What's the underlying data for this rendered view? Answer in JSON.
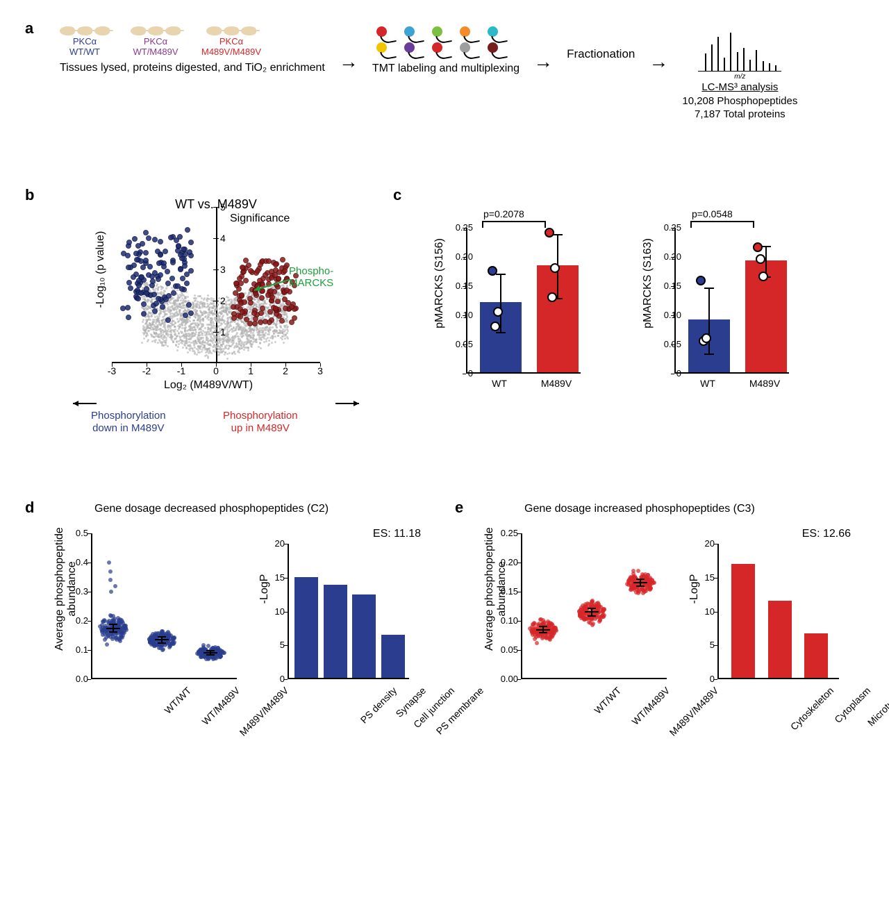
{
  "colors": {
    "blue": "#2a3d8f",
    "darkblue": "#1f2e70",
    "red": "#d62728",
    "darkred": "#8b1a1a",
    "purple": "#8b3a8b",
    "green": "#1fa038",
    "grey": "#b0b0b0",
    "black": "#000000",
    "mouse": "#e8d5b0"
  },
  "panel_a": {
    "genotypes": [
      {
        "top": "PKCα",
        "bot": "WT/WT",
        "cls": "gen-blue"
      },
      {
        "top": "PKCα",
        "bot": "WT/M489V",
        "cls": "gen-purple"
      },
      {
        "top": "PKCα",
        "bot": "M489V/M489V",
        "cls": "gen-red"
      }
    ],
    "step1": "Tissues lysed, proteins digested,\nand TiO₂ enrichment",
    "step2": "TMT labeling and multiplexing",
    "step3": "Fractionation",
    "bead_colors": [
      "#d62728",
      "#3da2d4",
      "#7bc043",
      "#f28c28",
      "#2bbac5",
      "#f2c500",
      "#6a3d9a",
      "#d62728",
      "#9e9e9e",
      "#7a1b1b"
    ],
    "ms_peaks": [
      0.45,
      0.7,
      0.9,
      0.35,
      1.0,
      0.5,
      0.6,
      0.3,
      0.55,
      0.25,
      0.2,
      0.15
    ],
    "ms_xlabel": "m/z",
    "ms_title": "LC-MS³ analysis",
    "ms_line1": "10,208 Phosphopeptides",
    "ms_line2": "7,187 Total proteins"
  },
  "panel_b": {
    "title": "WT vs. M489V",
    "ylabel": "-Log₁₀ (p value)",
    "xlabel": "Log₂ (M489V/WT)",
    "sig_label": "Significance",
    "callout": "Phospho-\nMARCKS",
    "down_label": "Phosphorylation\ndown in M489V",
    "up_label": "Phosphorylation\nup in M489V",
    "xlim": [
      -3,
      3
    ],
    "ylim": [
      0,
      5
    ],
    "xticks": [
      -3,
      -2,
      -1,
      0,
      1,
      2,
      3
    ],
    "yticks": [
      1,
      2,
      3,
      4,
      5
    ]
  },
  "panel_c": {
    "charts": [
      {
        "ylabel": "pMARCKS (S156)",
        "ylim": [
          0,
          0.25
        ],
        "yticks": [
          0,
          0.05,
          0.1,
          0.15,
          0.2,
          0.25
        ],
        "pval": "p=0.2078",
        "bars": [
          {
            "label": "WT",
            "value": 0.12,
            "err": 0.05,
            "color": "#2a3d8f",
            "points": [
              0.175,
              0.08,
              0.105
            ]
          },
          {
            "label": "M489V",
            "value": 0.183,
            "err": 0.055,
            "color": "#d62728",
            "points": [
              0.24,
              0.13,
              0.18
            ]
          }
        ]
      },
      {
        "ylabel": "pMARCKS (S163)",
        "ylim": [
          0,
          0.25
        ],
        "yticks": [
          0,
          0.05,
          0.1,
          0.15,
          0.2,
          0.25
        ],
        "pval": "p=0.0548",
        "bars": [
          {
            "label": "WT",
            "value": 0.09,
            "err": 0.057,
            "color": "#2a3d8f",
            "points": [
              0.158,
              0.055,
              0.06
            ]
          },
          {
            "label": "M489V",
            "value": 0.192,
            "err": 0.026,
            "color": "#d62728",
            "points": [
              0.215,
              0.195,
              0.165
            ]
          }
        ]
      }
    ]
  },
  "panel_d": {
    "title": "Gene dosage decreased phosphopeptides (C2)",
    "swarm": {
      "ylabel": "Average phosphopeptide\nabundance",
      "ylim": [
        0,
        0.5
      ],
      "yticks": [
        0.0,
        0.1,
        0.2,
        0.3,
        0.4,
        0.5
      ],
      "color": "#2a3d8f",
      "groups": [
        {
          "label": "WT/WT",
          "mean": 0.175,
          "sd": 0.045,
          "n": 140
        },
        {
          "label": "WT/M489V",
          "mean": 0.135,
          "sd": 0.035,
          "n": 140
        },
        {
          "label": "M489V/M489V",
          "mean": 0.09,
          "sd": 0.025,
          "n": 140
        }
      ]
    },
    "go": {
      "ylabel": "-LogP",
      "ylim": [
        0,
        20
      ],
      "yticks": [
        0,
        5,
        10,
        15,
        20
      ],
      "es": "ES: 11.18",
      "color": "#2a3d8f",
      "bars": [
        {
          "label": "PS density",
          "value": 14.9
        },
        {
          "label": "Synapse",
          "value": 13.7
        },
        {
          "label": "Cell junction",
          "value": 12.3
        },
        {
          "label": "PS membrane",
          "value": 6.4
        }
      ]
    }
  },
  "panel_e": {
    "title": "Gene dosage increased phosphopeptides (C3)",
    "swarm": {
      "ylabel": "Average phosphopeptide\nabundance",
      "ylim": [
        0,
        0.25
      ],
      "yticks": [
        0.0,
        0.05,
        0.1,
        0.15,
        0.2,
        0.25
      ],
      "color": "#d62728",
      "groups": [
        {
          "label": "WT/WT",
          "mean": 0.085,
          "sd": 0.018,
          "n": 140
        },
        {
          "label": "WT/M489V",
          "mean": 0.115,
          "sd": 0.022,
          "n": 140
        },
        {
          "label": "M489V/M489V",
          "mean": 0.165,
          "sd": 0.02,
          "n": 140
        }
      ]
    },
    "go": {
      "ylabel": "-LogP",
      "ylim": [
        0,
        20
      ],
      "yticks": [
        0,
        5,
        10,
        15,
        20
      ],
      "es": "ES: 12.66",
      "color": "#d62728",
      "bars": [
        {
          "label": "Cytoskeleton",
          "value": 16.8
        },
        {
          "label": "Cytoplasm",
          "value": 11.4
        },
        {
          "label": "Microtubule",
          "value": 6.6
        }
      ]
    }
  }
}
